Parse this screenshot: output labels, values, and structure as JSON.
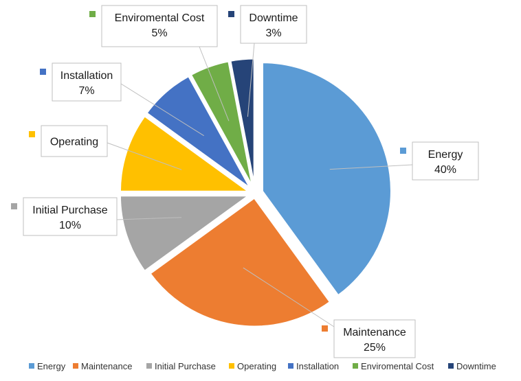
{
  "chart_data": {
    "type": "pie",
    "title": "",
    "slices": [
      {
        "label": "Energy",
        "value": 40,
        "value_label": "40%",
        "color": "#5B9BD5"
      },
      {
        "label": "Maintenance",
        "value": 25,
        "value_label": "25%",
        "color": "#ED7D31"
      },
      {
        "label": "Initial Purchase",
        "value": 10,
        "value_label": "10%",
        "color": "#A5A5A5"
      },
      {
        "label": "Operating",
        "value": 10,
        "value_label": "",
        "color": "#FFC000"
      },
      {
        "label": "Installation",
        "value": 7,
        "value_label": "7%",
        "color": "#4472C4"
      },
      {
        "label": "Enviromental Cost",
        "value": 5,
        "value_label": "5%",
        "color": "#70AD47"
      },
      {
        "label": "Downtime",
        "value": 3,
        "value_label": "3%",
        "color": "#264478"
      }
    ],
    "legend": {
      "position": "bottom",
      "entries": [
        "Energy",
        "Maintenance",
        "Initial Purchase",
        "Operating",
        "Installation",
        "Enviromental Cost",
        "Downtime"
      ]
    }
  }
}
